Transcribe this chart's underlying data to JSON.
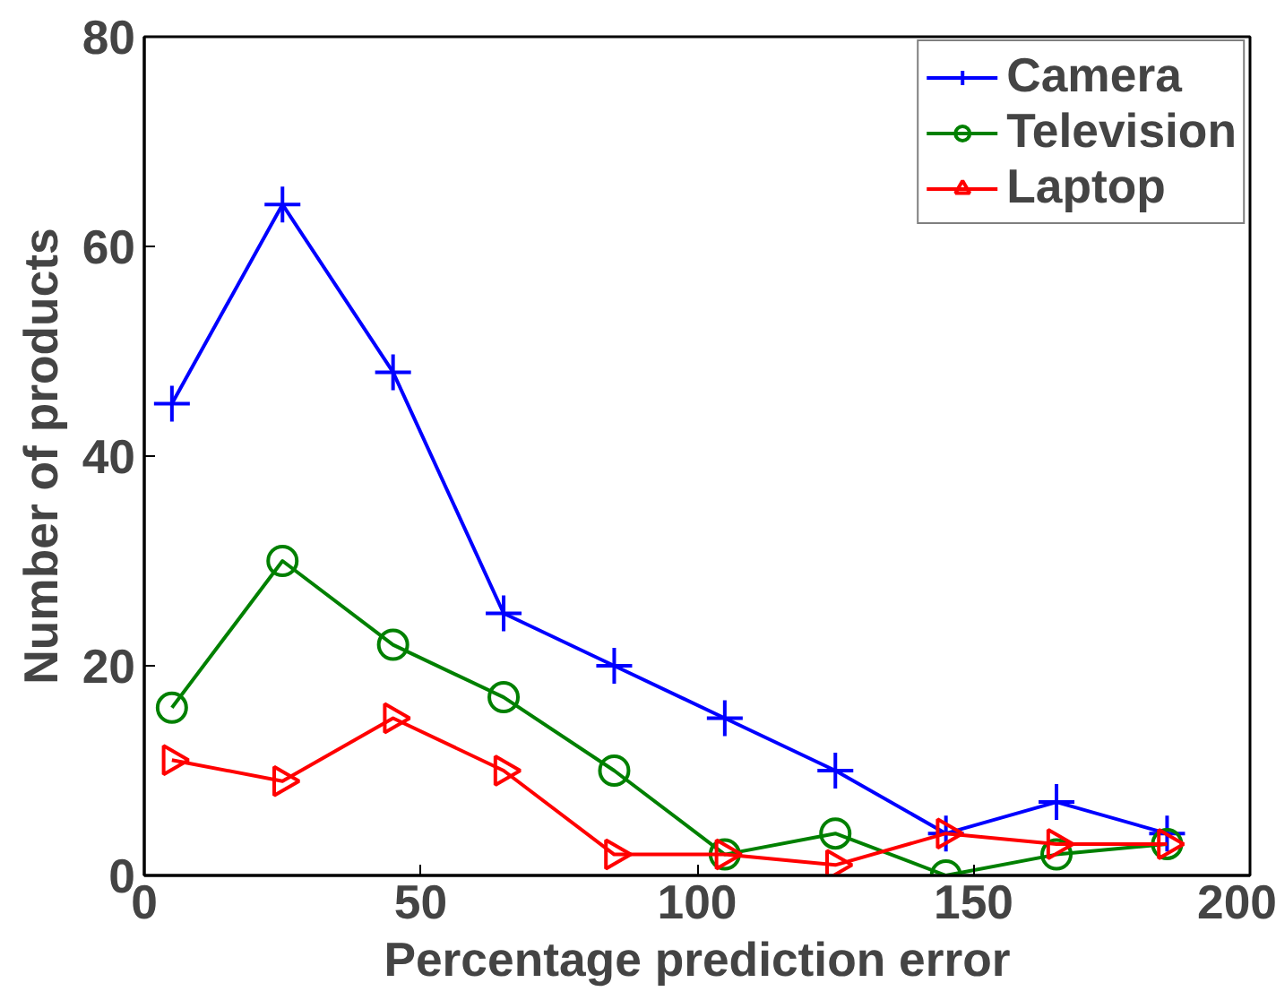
{
  "chart_data": {
    "type": "line",
    "xlabel": "Percentage prediction error",
    "ylabel": "Number of products",
    "x": [
      5,
      25,
      45,
      65,
      85,
      105,
      125,
      145,
      165,
      185
    ],
    "series": [
      {
        "name": "Camera",
        "color": "#0000ff",
        "marker": "cross",
        "values": [
          45,
          64,
          48,
          25,
          20,
          15,
          10,
          4,
          7,
          4
        ]
      },
      {
        "name": "Television",
        "color": "#008000",
        "marker": "circle",
        "values": [
          16,
          30,
          22,
          17,
          10,
          2,
          4,
          0,
          2,
          3
        ]
      },
      {
        "name": "Laptop",
        "color": "#ff0000",
        "marker": "triangle",
        "values": [
          11,
          9,
          15,
          10,
          2,
          2,
          1,
          4,
          3,
          3
        ]
      }
    ],
    "xlim": [
      0,
      200
    ],
    "xticks": [
      0,
      50,
      100,
      150,
      200
    ],
    "ylim": [
      0,
      80
    ],
    "yticks": [
      0,
      20,
      40,
      60,
      80
    ],
    "grid": false,
    "legend": "top right",
    "line_style": "solid"
  }
}
